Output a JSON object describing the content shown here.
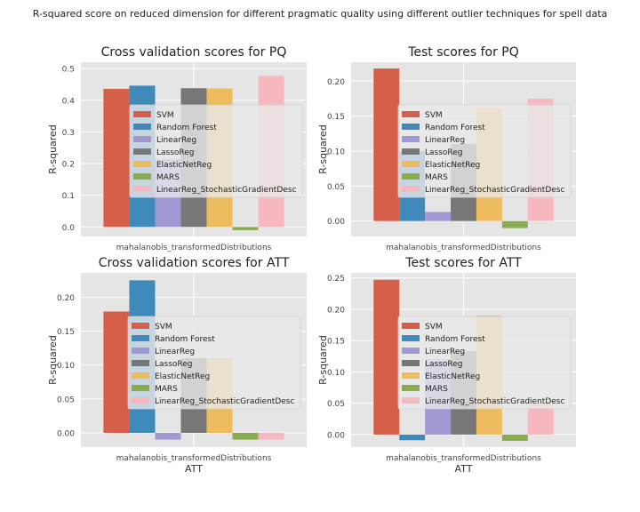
{
  "suptitle": "R-squared score on reduced dimension for different pragmatic quality using different outlier techniques for spell data",
  "colors": [
    "#d65f4a",
    "#3f89bb",
    "#a098d0",
    "#777777",
    "#ecbc5f",
    "#88ac4e",
    "#f6b8be"
  ],
  "chart_data": [
    {
      "type": "bar",
      "title": "Cross validation scores for PQ",
      "xlabel": "",
      "ylabel": "R-squared",
      "categories": [
        "mahalanobis_transformedDistributions"
      ],
      "ylim": [
        -0.03,
        0.52
      ],
      "yticks": [
        "0.0",
        "0.1",
        "0.2",
        "0.3",
        "0.4",
        "0.5"
      ],
      "grid": true,
      "legend": "center-right",
      "series": [
        {
          "name": "SVM",
          "values": [
            0.436
          ]
        },
        {
          "name": "Random Forest",
          "values": [
            0.446
          ]
        },
        {
          "name": "LinearReg",
          "values": [
            0.215
          ]
        },
        {
          "name": "LassoReg",
          "values": [
            0.438
          ]
        },
        {
          "name": "ElasticNetReg",
          "values": [
            0.437
          ]
        },
        {
          "name": "MARS",
          "values": [
            -0.01
          ]
        },
        {
          "name": "LinearReg_StochasticGradientDesc",
          "values": [
            0.477
          ]
        }
      ]
    },
    {
      "type": "bar",
      "title": "Test scores for PQ",
      "xlabel": "",
      "ylabel": "R-squared",
      "categories": [
        "mahalanobis_transformedDistributions"
      ],
      "ylim": [
        -0.022,
        0.227
      ],
      "yticks": [
        "0.00",
        "0.05",
        "0.10",
        "0.15",
        "0.20"
      ],
      "grid": true,
      "legend": "center-right",
      "series": [
        {
          "name": "SVM",
          "values": [
            0.218
          ]
        },
        {
          "name": "Random Forest",
          "values": [
            0.1
          ]
        },
        {
          "name": "LinearReg",
          "values": [
            0.013
          ]
        },
        {
          "name": "LassoReg",
          "values": [
            0.11
          ]
        },
        {
          "name": "ElasticNetReg",
          "values": [
            0.161
          ]
        },
        {
          "name": "MARS",
          "values": [
            -0.01
          ]
        },
        {
          "name": "LinearReg_StochasticGradientDesc",
          "values": [
            0.175
          ]
        }
      ]
    },
    {
      "type": "bar",
      "title": "Cross validation scores for ATT",
      "xlabel": "ATT",
      "ylabel": "R-squared",
      "categories": [
        "mahalanobis_transformedDistributions"
      ],
      "ylim": [
        -0.021,
        0.236
      ],
      "yticks": [
        "0.00",
        "0.05",
        "0.10",
        "0.15",
        "0.20"
      ],
      "grid": true,
      "legend": "center-right",
      "series": [
        {
          "name": "SVM",
          "values": [
            0.179
          ]
        },
        {
          "name": "Random Forest",
          "values": [
            0.225
          ]
        },
        {
          "name": "LinearReg",
          "values": [
            -0.01
          ]
        },
        {
          "name": "LassoReg",
          "values": [
            0.11
          ]
        },
        {
          "name": "ElasticNetReg",
          "values": [
            0.11
          ]
        },
        {
          "name": "MARS",
          "values": [
            -0.01
          ]
        },
        {
          "name": "LinearReg_StochasticGradientDesc",
          "values": [
            -0.01
          ]
        }
      ]
    },
    {
      "type": "bar",
      "title": "Test scores for ATT",
      "xlabel": "ATT",
      "ylabel": "R-squared",
      "categories": [
        "mahalanobis_transformedDistributions"
      ],
      "ylim": [
        -0.02,
        0.258
      ],
      "yticks": [
        "0.00",
        "0.05",
        "0.10",
        "0.15",
        "0.20",
        "0.25"
      ],
      "grid": true,
      "legend": "center-right",
      "series": [
        {
          "name": "SVM",
          "values": [
            0.247
          ]
        },
        {
          "name": "Random Forest",
          "values": [
            -0.009
          ]
        },
        {
          "name": "LinearReg",
          "values": [
            0.12
          ]
        },
        {
          "name": "LassoReg",
          "values": [
            0.133
          ]
        },
        {
          "name": "ElasticNetReg",
          "values": [
            0.19
          ]
        },
        {
          "name": "MARS",
          "values": [
            -0.01
          ]
        },
        {
          "name": "LinearReg_StochasticGradientDesc",
          "values": [
            0.05
          ]
        }
      ]
    }
  ]
}
